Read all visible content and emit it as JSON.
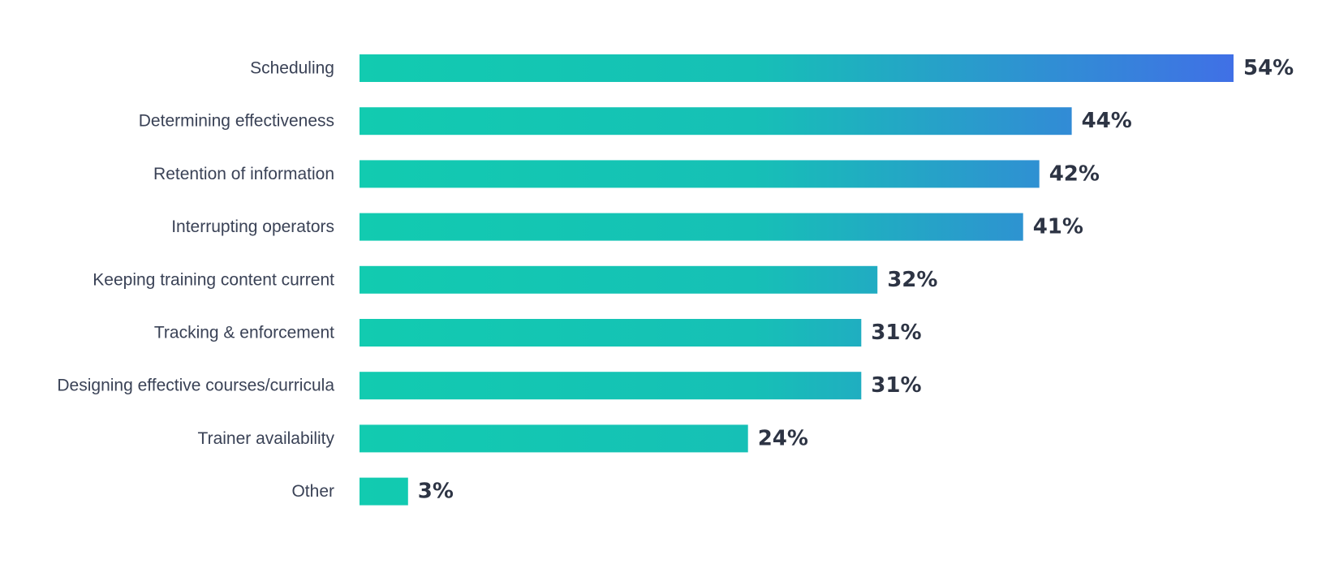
{
  "chart_data": {
    "type": "bar",
    "orientation": "horizontal",
    "categories": [
      "Scheduling",
      "Determining effectiveness",
      "Retention of information",
      "Interrupting operators",
      "Keeping training content current",
      "Tracking & enforcement",
      "Designing effective courses/curricula",
      "Trainer availability",
      "Other"
    ],
    "values": [
      54,
      44,
      42,
      41,
      32,
      31,
      31,
      24,
      3
    ],
    "value_labels": [
      "54%",
      "44%",
      "42%",
      "41%",
      "32%",
      "31%",
      "31%",
      "24%",
      "3%"
    ],
    "unit": "%",
    "xlim": [
      0,
      54
    ],
    "grid": false,
    "legend": "none",
    "colors": {
      "bar_start": "#12cbb0",
      "bar_end": "#4070e6",
      "category_text": "#3a4256",
      "value_text": "#2d3444"
    }
  }
}
